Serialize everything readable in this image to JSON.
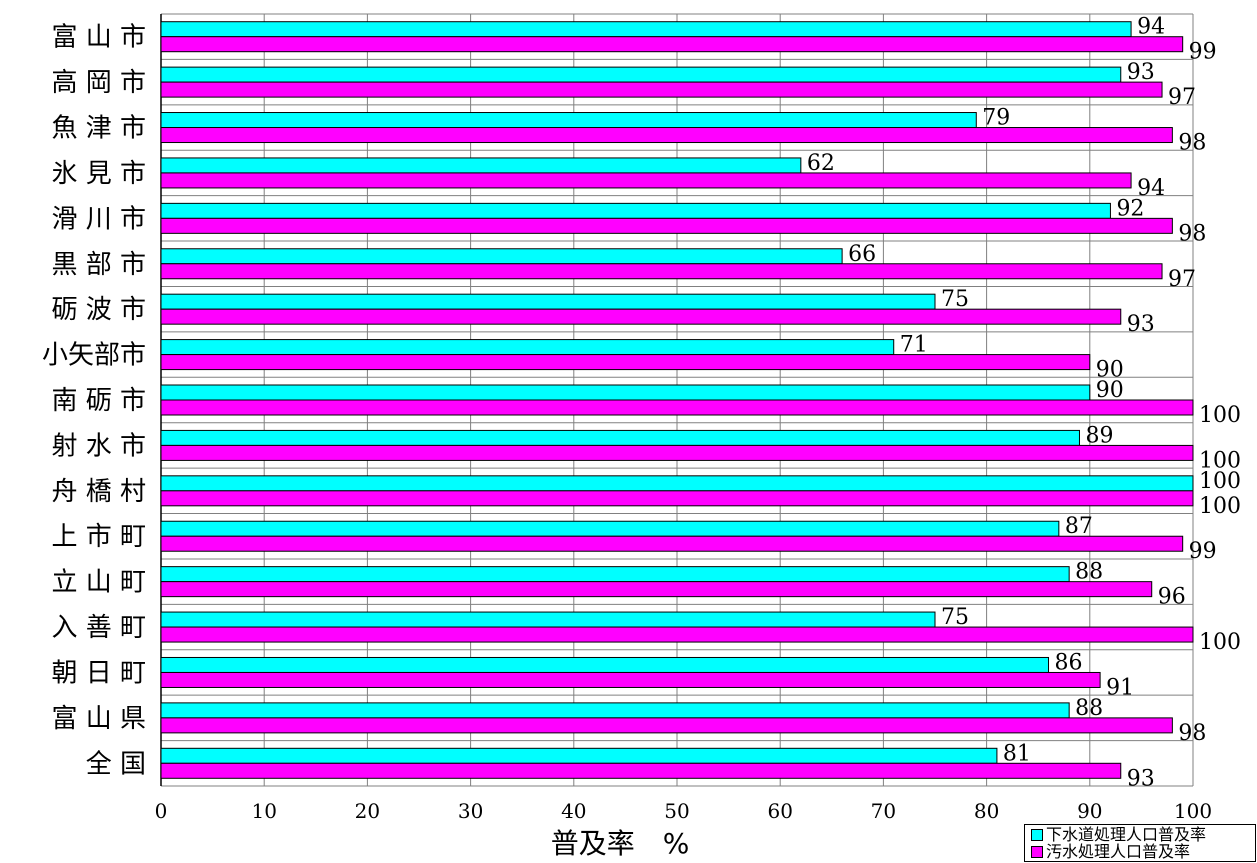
{
  "chart_data": {
    "type": "bar",
    "orientation": "horizontal",
    "categories": [
      "富 山 市",
      "高 岡 市",
      "魚 津 市",
      "氷 見 市",
      "滑 川 市",
      "黒 部 市",
      "砺 波 市",
      "小矢部市",
      "南 砺 市",
      "射 水 市",
      "舟 橋 村",
      "上 市 町",
      "立 山 町",
      "入 善 町",
      "朝 日 町",
      "富 山 県",
      "全 国"
    ],
    "series": [
      {
        "name": "下水道処理人口普及率",
        "color": "#00ffff",
        "values": [
          94,
          93,
          79,
          62,
          92,
          66,
          75,
          71,
          90,
          89,
          100,
          87,
          88,
          75,
          86,
          88,
          81
        ]
      },
      {
        "name": "汚水処理人口普及率",
        "color": "#ff00ff",
        "values": [
          99,
          97,
          98,
          94,
          98,
          97,
          93,
          90,
          100,
          100,
          100,
          99,
          96,
          100,
          91,
          98,
          93
        ]
      }
    ],
    "xlabel": "普及率　%",
    "xlim": [
      0,
      100
    ],
    "xticks": [
      0,
      10,
      20,
      30,
      40,
      50,
      60,
      70,
      80,
      90,
      100
    ],
    "grid": "vertical and horizontal",
    "legend_position": "bottom-right"
  }
}
